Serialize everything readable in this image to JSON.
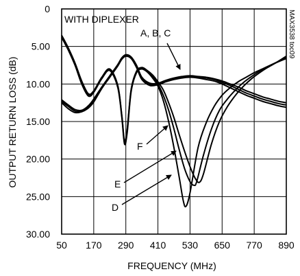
{
  "chart_data": {
    "type": "line",
    "inset_label": "WITH DIPLEXER",
    "side_code": "MAX3538 toc09",
    "xlabel": "FREQUENCY (MHz)",
    "ylabel": "OUTPUT RETURN LOSS (dB)",
    "xlim": [
      50,
      890
    ],
    "ylim": [
      0,
      30
    ],
    "y_inverted": true,
    "grid": true,
    "x_ticks": [
      50,
      170,
      290,
      410,
      530,
      650,
      770,
      890
    ],
    "x_tick_labels": [
      "50",
      "170",
      "290",
      "410",
      "530",
      "650",
      "770",
      "890"
    ],
    "y_ticks": [
      0,
      5,
      10,
      15,
      20,
      25,
      30
    ],
    "y_tick_labels": [
      "0",
      "5.00",
      "10.00",
      "15.00",
      "20.00",
      "25.00",
      "30.00"
    ],
    "annotations": [
      {
        "text": "A, B, C",
        "x": 513,
        "y": 8.9
      },
      {
        "text": "F",
        "x": 440,
        "y": 15.8
      },
      {
        "text": "E",
        "x": 480,
        "y": 20.2
      },
      {
        "text": "D",
        "x": 503,
        "y": 23.9
      }
    ],
    "series": [
      {
        "name": "A",
        "x": [
          50,
          75,
          100,
          125,
          150,
          170,
          200,
          230,
          260,
          275,
          290,
          310,
          330,
          350,
          380,
          410,
          440,
          470,
          500,
          530,
          560,
          590,
          620,
          650,
          680,
          710,
          740,
          770,
          800,
          830,
          860,
          890
        ],
        "y": [
          12.3,
          13.0,
          13.6,
          13.6,
          13.0,
          12.2,
          10.5,
          9.0,
          7.5,
          6.6,
          6.2,
          6.5,
          7.6,
          9.2,
          10.1,
          10.0,
          9.6,
          9.3,
          9.1,
          9.0,
          9.1,
          9.2,
          9.4,
          9.8,
          10.2,
          10.7,
          11.2,
          11.6,
          12.0,
          12.3,
          12.6,
          12.8
        ]
      },
      {
        "name": "B",
        "x": [
          50,
          75,
          100,
          125,
          150,
          170,
          200,
          230,
          260,
          275,
          290,
          310,
          330,
          350,
          380,
          410,
          440,
          470,
          500,
          530,
          560,
          590,
          620,
          650,
          680,
          710,
          740,
          770,
          800,
          830,
          860,
          890
        ],
        "y": [
          12.5,
          13.3,
          13.8,
          13.7,
          13.2,
          12.4,
          10.6,
          9.1,
          7.6,
          6.7,
          6.3,
          6.6,
          7.8,
          9.4,
          10.2,
          10.1,
          9.7,
          9.4,
          9.2,
          9.1,
          9.2,
          9.4,
          9.6,
          10.0,
          10.5,
          11.0,
          11.5,
          11.9,
          12.3,
          12.6,
          12.9,
          13.1
        ]
      },
      {
        "name": "C",
        "x": [
          50,
          75,
          100,
          125,
          150,
          170,
          200,
          230,
          260,
          275,
          290,
          310,
          330,
          350,
          380,
          410,
          440,
          470,
          500,
          530,
          560,
          590,
          620,
          650,
          680,
          710,
          740,
          770,
          800,
          830,
          860,
          890
        ],
        "y": [
          12.1,
          12.8,
          13.4,
          13.5,
          12.9,
          12.0,
          10.4,
          8.9,
          7.4,
          6.5,
          6.1,
          6.4,
          7.5,
          9.1,
          9.9,
          9.9,
          9.5,
          9.2,
          9.0,
          8.9,
          9.0,
          9.1,
          9.3,
          9.6,
          10.0,
          10.4,
          10.9,
          11.3,
          11.7,
          12.0,
          12.3,
          12.5
        ]
      },
      {
        "name": "D",
        "x": [
          50,
          75,
          100,
          125,
          150,
          170,
          200,
          230,
          260,
          275,
          285,
          295,
          310,
          330,
          350,
          370,
          390,
          410,
          430,
          450,
          470,
          490,
          505,
          515,
          530,
          560,
          590,
          620,
          650,
          680,
          710,
          740,
          770,
          800,
          830,
          860,
          890
        ],
        "y": [
          3.8,
          5.5,
          7.5,
          10.0,
          11.6,
          11.1,
          9.3,
          8.2,
          10.5,
          14.5,
          18.0,
          16.5,
          11.0,
          8.5,
          8.0,
          8.4,
          9.2,
          10.3,
          12.2,
          15.0,
          18.5,
          22.5,
          25.6,
          26.3,
          24.5,
          18.5,
          15.2,
          13.0,
          11.5,
          10.5,
          9.7,
          9.1,
          8.5,
          8.0,
          7.5,
          7.0,
          6.5
        ]
      },
      {
        "name": "E",
        "x": [
          50,
          75,
          100,
          125,
          150,
          170,
          200,
          230,
          260,
          275,
          285,
          295,
          310,
          330,
          350,
          370,
          390,
          410,
          430,
          450,
          470,
          490,
          510,
          530,
          545,
          555,
          580,
          610,
          640,
          670,
          700,
          730,
          760,
          790,
          820,
          850,
          890
        ],
        "y": [
          3.6,
          5.3,
          7.3,
          9.8,
          11.4,
          11.0,
          9.2,
          8.1,
          10.3,
          14.3,
          17.8,
          16.2,
          10.8,
          8.4,
          7.9,
          8.3,
          9.0,
          10.0,
          11.5,
          13.5,
          16.0,
          18.8,
          21.3,
          23.0,
          23.5,
          23.0,
          19.5,
          16.0,
          13.5,
          12.0,
          10.8,
          9.8,
          9.0,
          8.3,
          7.7,
          7.2,
          6.6
        ]
      },
      {
        "name": "F",
        "x": [
          50,
          75,
          100,
          125,
          150,
          170,
          200,
          230,
          260,
          275,
          285,
          295,
          310,
          330,
          350,
          370,
          390,
          410,
          430,
          450,
          470,
          490,
          510,
          530,
          550,
          565,
          580,
          610,
          640,
          670,
          700,
          730,
          760,
          790,
          820,
          850,
          890
        ],
        "y": [
          3.5,
          5.2,
          7.2,
          9.6,
          11.3,
          10.9,
          9.1,
          8.0,
          10.2,
          14.2,
          17.6,
          16.0,
          10.7,
          8.3,
          7.8,
          8.2,
          8.8,
          9.7,
          10.8,
          12.5,
          14.5,
          16.8,
          19.0,
          21.0,
          22.6,
          23.1,
          22.0,
          18.0,
          15.0,
          13.0,
          11.5,
          10.3,
          9.3,
          8.5,
          7.8,
          7.2,
          6.3
        ]
      }
    ]
  }
}
